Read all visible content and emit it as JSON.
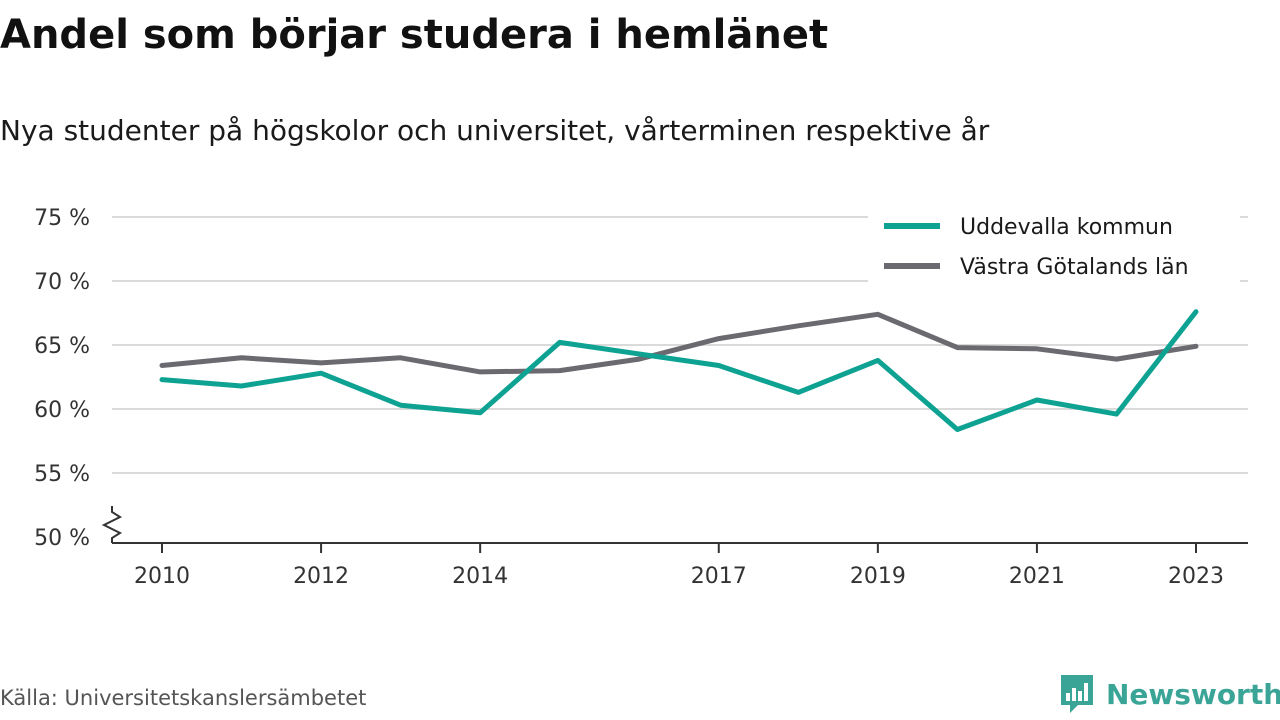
{
  "header": {
    "title": "Andel som börjar studera i hemlänet",
    "subtitle": "Nya studenter på högskolor och universitet, vårterminen respektive år"
  },
  "footer": {
    "source": "Källa: Universitetskanslersämbetet",
    "brand": "Newsworthy",
    "brand_color": "#3aa597"
  },
  "chart_data": {
    "type": "line",
    "title": "Andel som börjar studera i hemlänet",
    "subtitle": "Nya studenter på högskolor och universitet, vårterminen respektive år",
    "x": [
      2010,
      2011,
      2012,
      2013,
      2014,
      2015,
      2016,
      2017,
      2018,
      2019,
      2020,
      2021,
      2022,
      2023
    ],
    "x_ticks": [
      2010,
      2012,
      2014,
      2017,
      2019,
      2021,
      2023
    ],
    "y_ticks": [
      50,
      55,
      60,
      65,
      70,
      75
    ],
    "y_tick_suffix": " %",
    "ylim": [
      50,
      75
    ],
    "y_axis_break": true,
    "grid": true,
    "legend_position": "top-right",
    "series": [
      {
        "name": "Uddevalla kommun",
        "color": "#0ea293",
        "values": [
          62.3,
          61.8,
          62.8,
          60.3,
          59.7,
          65.2,
          64.3,
          63.4,
          61.3,
          63.8,
          58.4,
          60.7,
          59.6,
          67.6
        ]
      },
      {
        "name": "Västra Götalands län",
        "color": "#6b6a70",
        "values": [
          63.4,
          64.0,
          63.6,
          64.0,
          62.9,
          63.0,
          63.9,
          65.5,
          66.5,
          67.4,
          64.8,
          64.7,
          63.9,
          64.9
        ]
      }
    ]
  }
}
